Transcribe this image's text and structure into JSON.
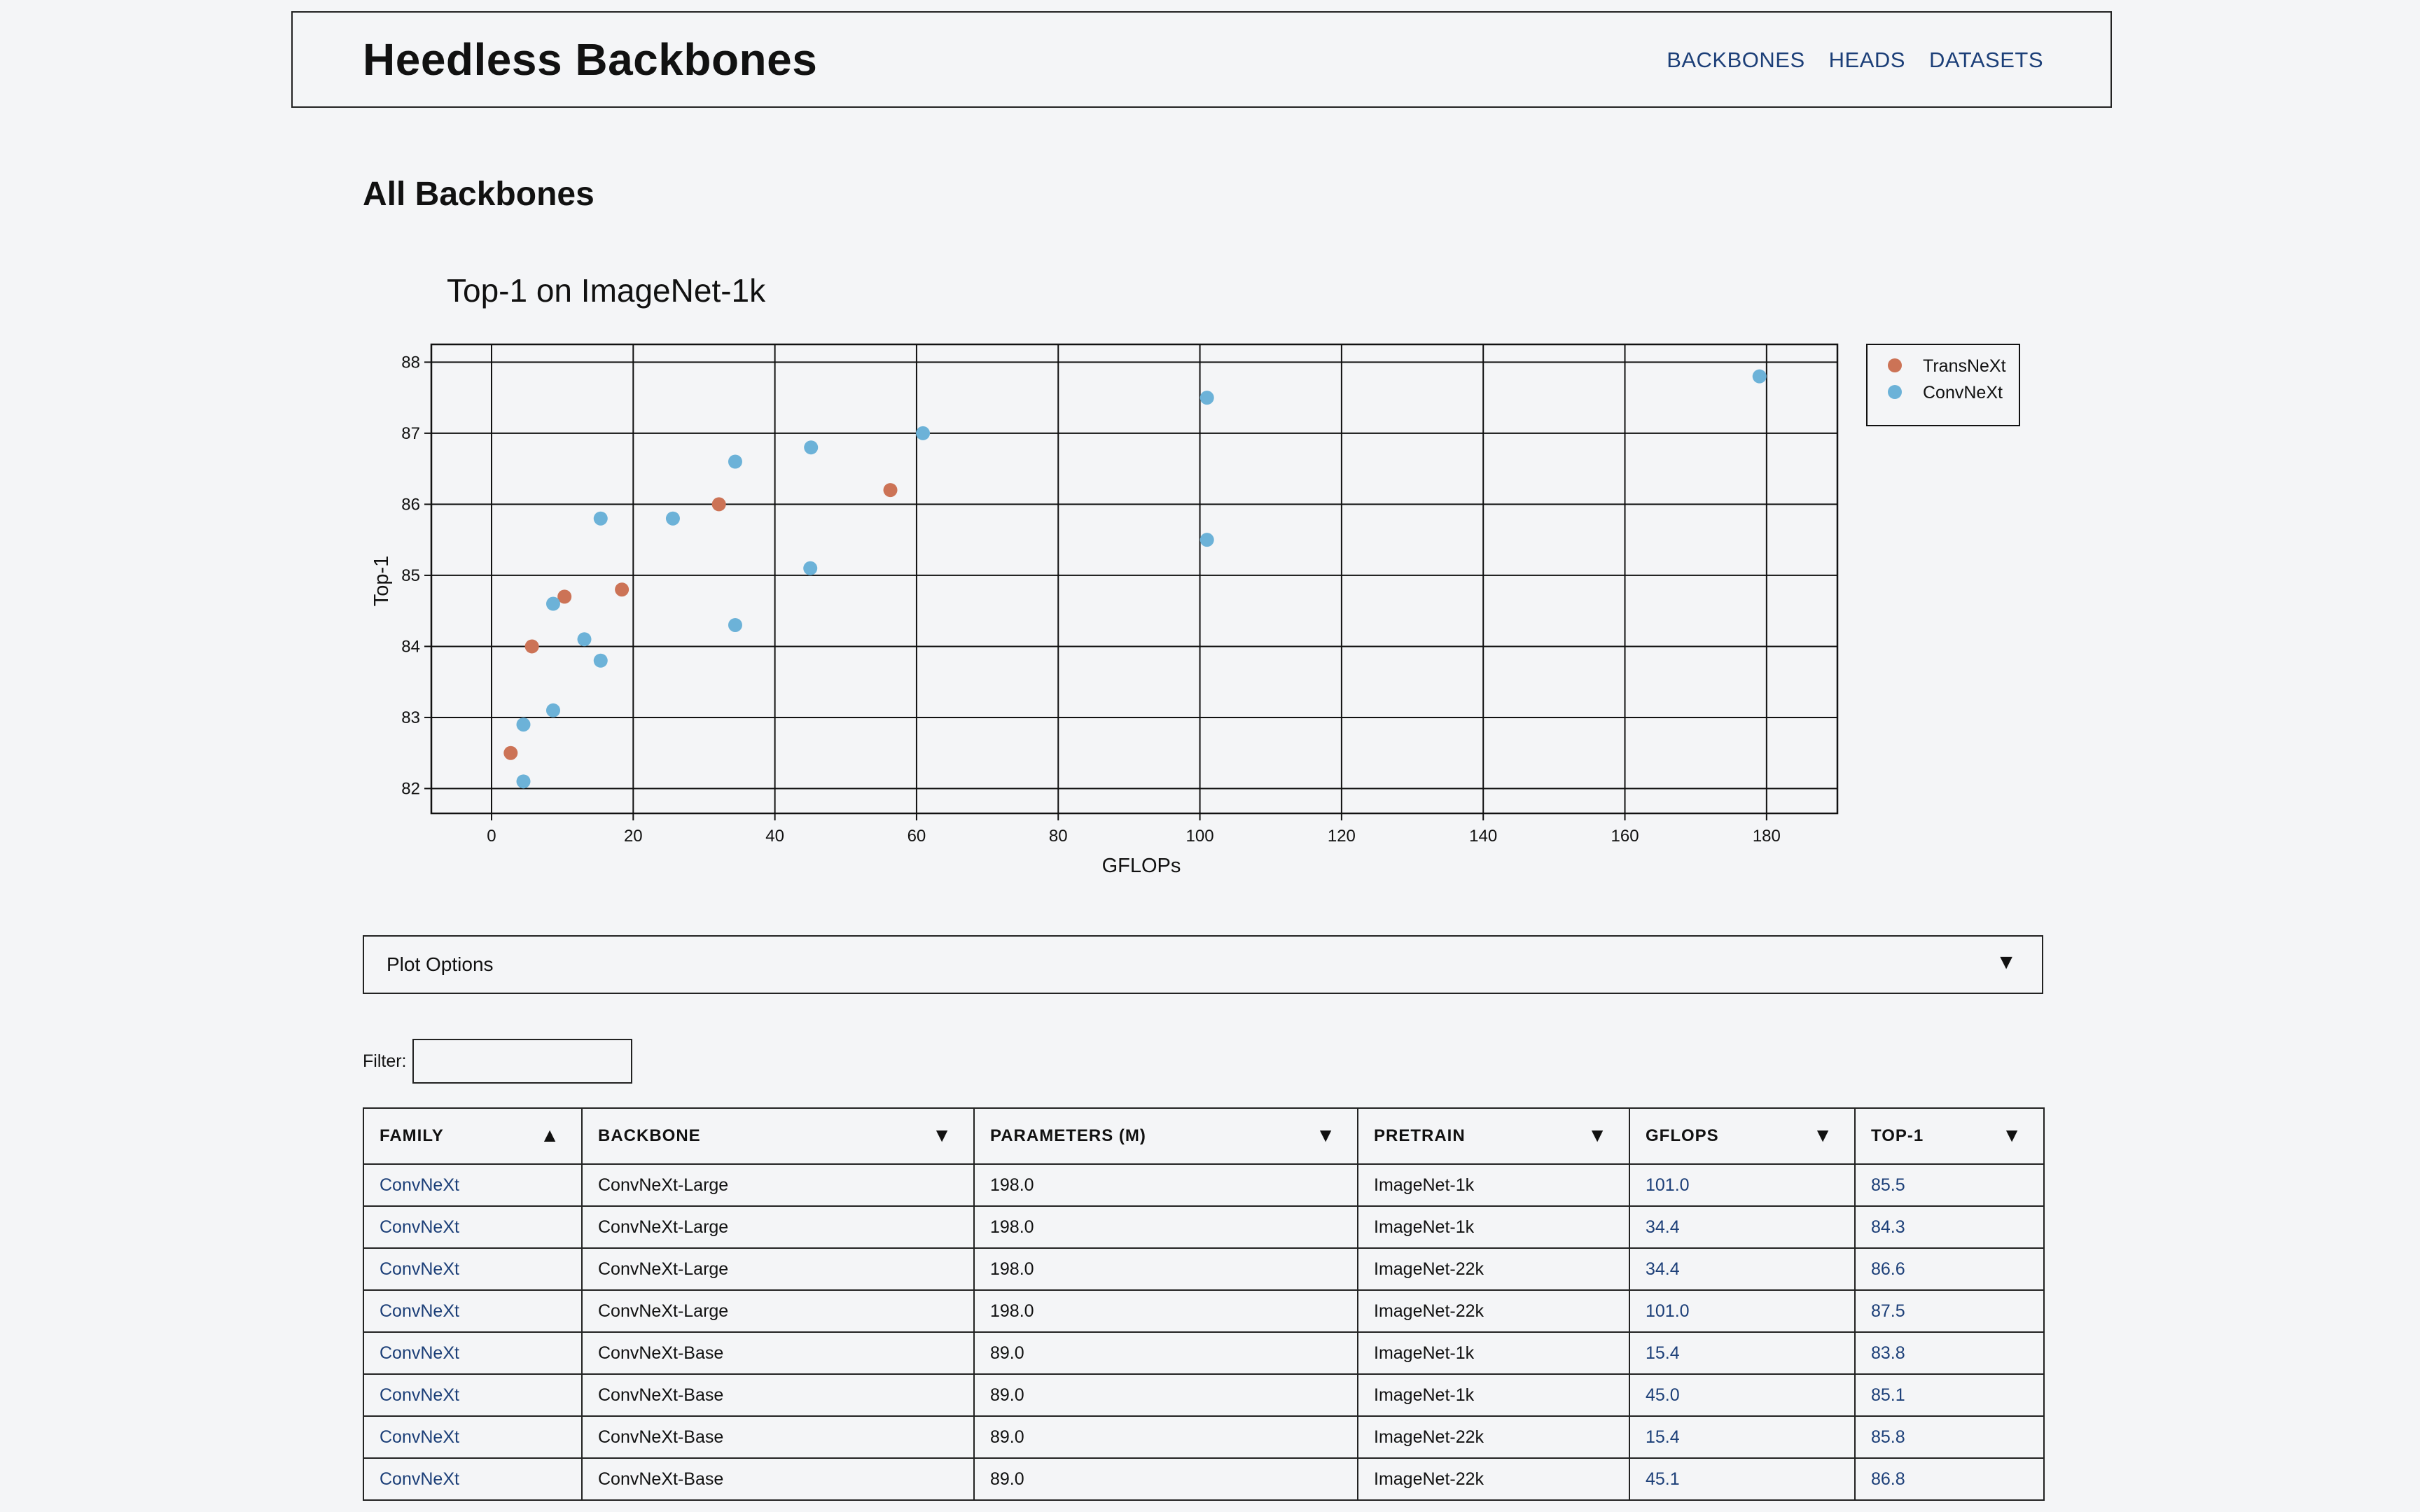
{
  "header": {
    "title": "Heedless Backbones",
    "nav": [
      "BACKBONES",
      "HEADS",
      "DATASETS"
    ]
  },
  "page": {
    "title": "All Backbones"
  },
  "chart_data": {
    "type": "scatter",
    "title": "Top-1 on ImageNet-1k",
    "xlabel": "GFLOPs",
    "ylabel": "Top-1",
    "xlim": [
      -8.5,
      190
    ],
    "ylim": [
      81.65,
      88.25
    ],
    "xticks": [
      0,
      20,
      40,
      60,
      80,
      100,
      120,
      140,
      160,
      180
    ],
    "yticks": [
      82,
      83,
      84,
      85,
      86,
      87,
      88
    ],
    "grid": true,
    "legend_position": "outside-top-right",
    "series": [
      {
        "name": "TransNeXt",
        "color": "#cc7356",
        "points": [
          [
            2.7,
            82.5
          ],
          [
            5.7,
            84.0
          ],
          [
            10.3,
            84.7
          ],
          [
            18.4,
            84.8
          ],
          [
            32.1,
            86.0
          ],
          [
            56.3,
            86.2
          ]
        ]
      },
      {
        "name": "ConvNeXt",
        "color": "#6cb2d8",
        "points": [
          [
            4.5,
            82.1
          ],
          [
            4.5,
            82.9
          ],
          [
            8.7,
            83.1
          ],
          [
            8.7,
            84.6
          ],
          [
            13.1,
            84.1
          ],
          [
            15.4,
            83.8
          ],
          [
            15.4,
            85.8
          ],
          [
            25.6,
            85.8
          ],
          [
            34.4,
            84.3
          ],
          [
            34.4,
            86.6
          ],
          [
            45.0,
            85.1
          ],
          [
            45.1,
            86.8
          ],
          [
            60.9,
            87.0
          ],
          [
            101.0,
            85.5
          ],
          [
            101.0,
            87.5
          ],
          [
            179.0,
            87.8
          ]
        ]
      }
    ]
  },
  "plot_options": {
    "label": "Plot Options",
    "caret": "▼"
  },
  "filter": {
    "label": "Filter:",
    "value": "",
    "placeholder": ""
  },
  "table": {
    "columns": [
      {
        "label": "FAMILY",
        "sort": "▲"
      },
      {
        "label": "BACKBONE",
        "sort": "▼"
      },
      {
        "label": "PARAMETERS (M)",
        "sort": "▼"
      },
      {
        "label": "PRETRAIN",
        "sort": "▼"
      },
      {
        "label": "GFLOPS",
        "sort": "▼"
      },
      {
        "label": "TOP-1",
        "sort": "▼"
      }
    ],
    "rows": [
      [
        "ConvNeXt",
        "ConvNeXt-Large",
        "198.0",
        "ImageNet-1k",
        "101.0",
        "85.5"
      ],
      [
        "ConvNeXt",
        "ConvNeXt-Large",
        "198.0",
        "ImageNet-1k",
        "34.4",
        "84.3"
      ],
      [
        "ConvNeXt",
        "ConvNeXt-Large",
        "198.0",
        "ImageNet-22k",
        "34.4",
        "86.6"
      ],
      [
        "ConvNeXt",
        "ConvNeXt-Large",
        "198.0",
        "ImageNet-22k",
        "101.0",
        "87.5"
      ],
      [
        "ConvNeXt",
        "ConvNeXt-Base",
        "89.0",
        "ImageNet-1k",
        "15.4",
        "83.8"
      ],
      [
        "ConvNeXt",
        "ConvNeXt-Base",
        "89.0",
        "ImageNet-1k",
        "45.0",
        "85.1"
      ],
      [
        "ConvNeXt",
        "ConvNeXt-Base",
        "89.0",
        "ImageNet-22k",
        "15.4",
        "85.8"
      ],
      [
        "ConvNeXt",
        "ConvNeXt-Base",
        "89.0",
        "ImageNet-22k",
        "45.1",
        "86.8"
      ]
    ]
  }
}
